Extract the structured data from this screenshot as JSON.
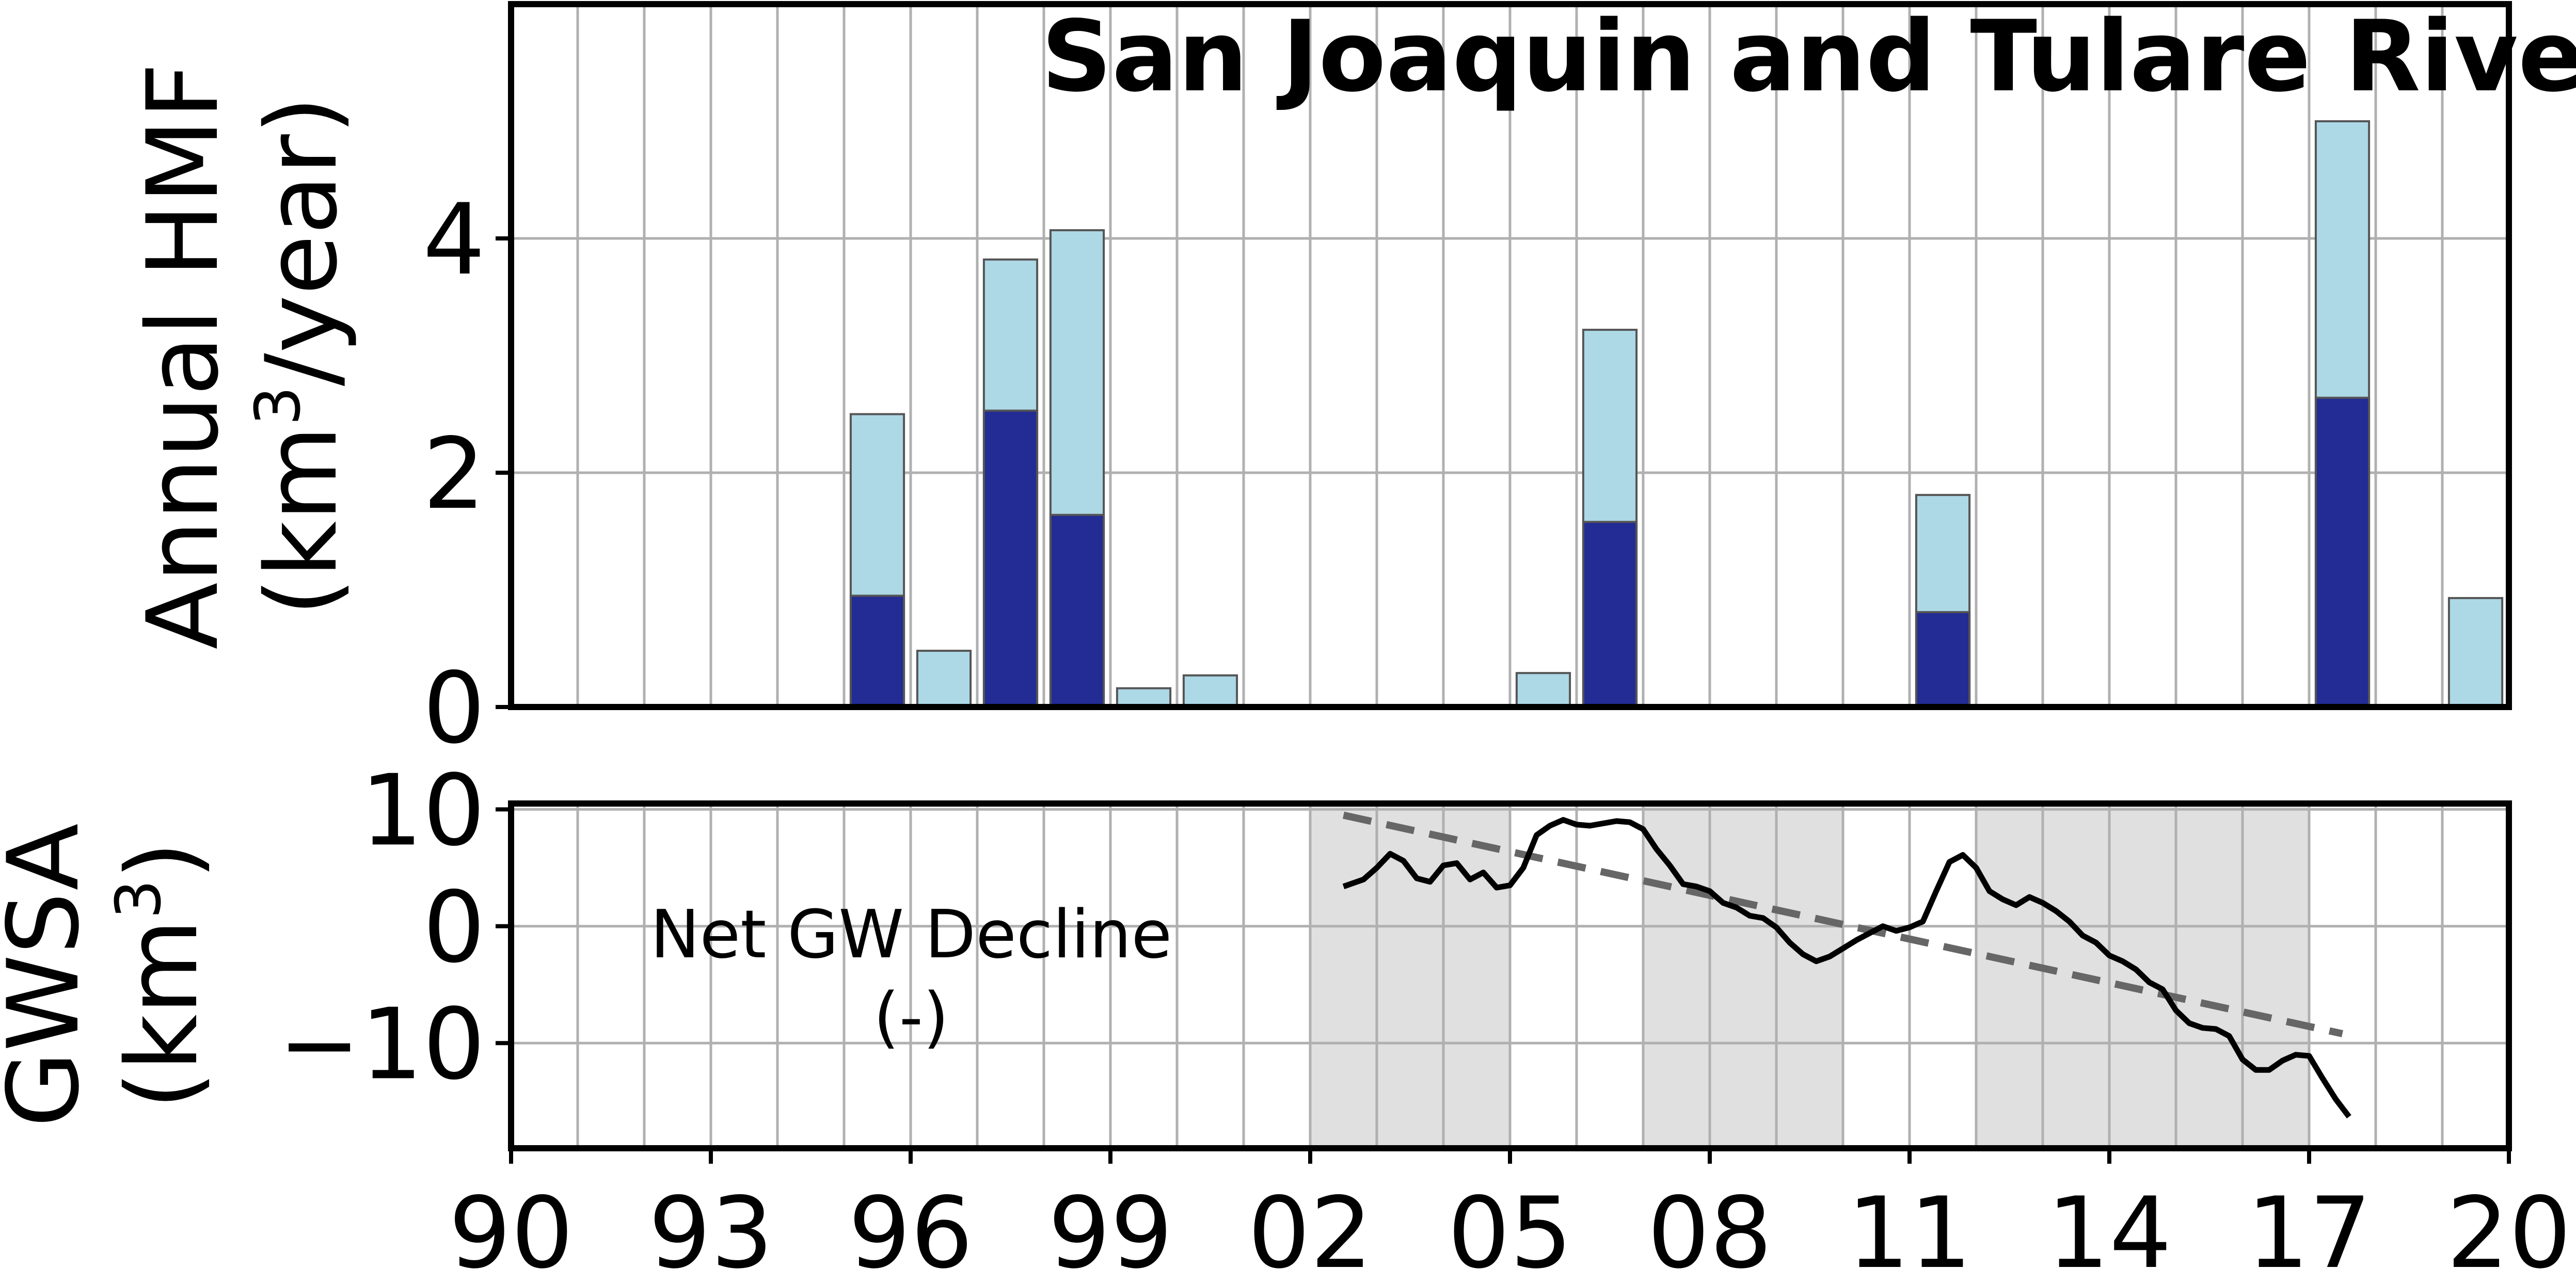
{
  "chart_data": [
    {
      "type": "bar",
      "title": "San Joaquin and Tulare River Basin",
      "ylabel_line1": "Annual HMF",
      "ylabel_line2_prefix": "(km",
      "ylabel_line2_sup": "3",
      "ylabel_line2_suffix": "/year)",
      "xlim": [
        1990,
        2020
      ],
      "ylim": [
        0,
        6
      ],
      "yticks": [
        0,
        2,
        4
      ],
      "grid": true,
      "stacked": true,
      "bars": [
        {
          "x": 1995.5,
          "total": 2.5,
          "lower": 0.95
        },
        {
          "x": 1996.5,
          "total": 0.48,
          "lower": 0
        },
        {
          "x": 1997.5,
          "total": 3.82,
          "lower": 2.53
        },
        {
          "x": 1998.5,
          "total": 4.07,
          "lower": 1.64
        },
        {
          "x": 1999.5,
          "total": 0.16,
          "lower": 0
        },
        {
          "x": 2000.5,
          "total": 0.27,
          "lower": 0
        },
        {
          "x": 2005.5,
          "total": 0.29,
          "lower": 0
        },
        {
          "x": 2006.5,
          "total": 3.22,
          "lower": 1.58
        },
        {
          "x": 2011.5,
          "total": 1.81,
          "lower": 0.81
        },
        {
          "x": 2017.5,
          "total": 5.0,
          "lower": 2.64
        },
        {
          "x": 2019.5,
          "total": 0.93,
          "lower": 0
        }
      ],
      "colors": {
        "upper": "#add8e6",
        "lower": "#232b94",
        "edge": "#555555"
      }
    },
    {
      "type": "line",
      "ylabel_line1": "GWSA",
      "ylabel_line2_prefix": "(km",
      "ylabel_line2_sup": "3",
      "ylabel_line2_suffix": ")",
      "xlim": [
        1990,
        2020
      ],
      "ylim": [
        -19,
        10.5
      ],
      "yticks": [
        10,
        0,
        -10
      ],
      "ytick_labels": [
        "10",
        "0",
        "−10"
      ],
      "xticks": [
        1990,
        1993,
        1996,
        1999,
        2002,
        2005,
        2008,
        2011,
        2014,
        2017,
        2020
      ],
      "xtick_labels": [
        "90",
        "93",
        "96",
        "99",
        "02",
        "05",
        "08",
        "11",
        "14",
        "17",
        "20"
      ],
      "grid": true,
      "annotation_line1": "Net GW Decline",
      "annotation_line2": "(-)",
      "shaded_periods": [
        [
          2002,
          2005
        ],
        [
          2007,
          2010
        ],
        [
          2012,
          2017
        ]
      ],
      "trend": {
        "x": [
          2002.5,
          2017.5
        ],
        "y": [
          9.5,
          -9.2
        ],
        "color": "#666666"
      },
      "series": [
        {
          "color": "#000000",
          "x": [
            2002.5,
            2002.8,
            2003.0,
            2003.2,
            2003.4,
            2003.6,
            2003.8,
            2004.0,
            2004.2,
            2004.4,
            2004.6,
            2004.8,
            2005.0,
            2005.2,
            2005.4,
            2005.6,
            2005.8,
            2006.0,
            2006.2,
            2006.4,
            2006.6,
            2006.8,
            2007.0,
            2007.2,
            2007.4,
            2007.6,
            2007.8,
            2008.0,
            2008.2,
            2008.4,
            2008.6,
            2008.8,
            2009.0,
            2009.2,
            2009.4,
            2009.6,
            2009.8,
            2010.0,
            2010.2,
            2010.4,
            2010.6,
            2010.8,
            2011.0,
            2011.2,
            2011.4,
            2011.6,
            2011.8,
            2012.0,
            2012.2,
            2012.4,
            2012.6,
            2012.8,
            2013.0,
            2013.2,
            2013.4,
            2013.6,
            2013.8,
            2014.0,
            2014.2,
            2014.4,
            2014.6,
            2014.8,
            2015.0,
            2015.2,
            2015.4,
            2015.6,
            2015.8,
            2016.0,
            2016.2,
            2016.4,
            2016.6,
            2016.8,
            2017.0,
            2017.2,
            2017.4,
            2017.6
          ],
          "y": [
            3.4,
            4.0,
            5.0,
            6.2,
            5.6,
            4.1,
            3.8,
            5.2,
            5.4,
            4.0,
            4.6,
            3.3,
            3.5,
            5.0,
            7.8,
            8.6,
            9.1,
            8.7,
            8.6,
            8.8,
            9.0,
            8.9,
            8.3,
            6.6,
            5.2,
            3.6,
            3.4,
            3.0,
            2.0,
            1.6,
            0.9,
            0.7,
            -0.1,
            -1.4,
            -2.4,
            -3.0,
            -2.6,
            -1.9,
            -1.2,
            -0.6,
            0.0,
            -0.4,
            -0.1,
            0.4,
            3.0,
            5.5,
            6.1,
            5.0,
            3.0,
            2.3,
            1.8,
            2.5,
            2.0,
            1.3,
            0.4,
            -0.8,
            -1.4,
            -2.5,
            -3.0,
            -3.7,
            -4.8,
            -5.4,
            -7.2,
            -8.3,
            -8.7,
            -8.8,
            -9.4,
            -11.4,
            -12.3,
            -12.3,
            -11.5,
            -11.0,
            -11.1,
            -13.0,
            -14.8,
            -16.3
          ]
        }
      ]
    }
  ]
}
